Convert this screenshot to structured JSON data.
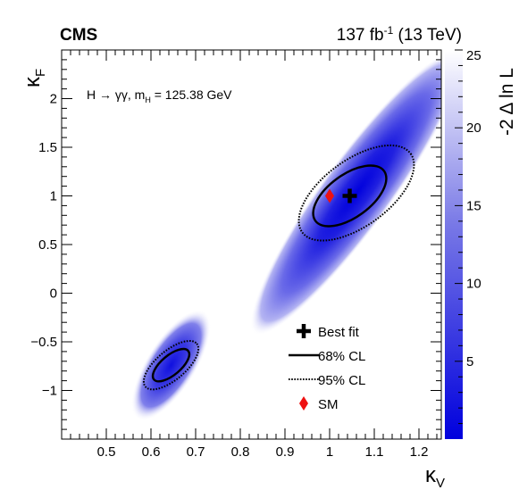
{
  "chart_data": {
    "type": "heatmap",
    "experiment": "CMS",
    "lumi": {
      "pre": "137 fb",
      "sup": "-1",
      "post": " (13 TeV)"
    },
    "process": {
      "main": "H → γγ, m",
      "sub": "H",
      "tail": " = 125.38 GeV"
    },
    "xlabel": {
      "main": "κ",
      "sub": "V"
    },
    "ylabel": {
      "main": "κ",
      "sub": "F"
    },
    "zlabel": "-2 Δ ln L",
    "xlim": [
      0.4,
      1.25
    ],
    "ylim": [
      -1.5,
      2.5
    ],
    "zlim": [
      0,
      25
    ],
    "xticks": [
      {
        "v": 0.5,
        "label": "0.5"
      },
      {
        "v": 0.6,
        "label": "0.6"
      },
      {
        "v": 0.7,
        "label": "0.7"
      },
      {
        "v": 0.8,
        "label": "0.8"
      },
      {
        "v": 0.9,
        "label": "0.9"
      },
      {
        "v": 1.0,
        "label": "1"
      },
      {
        "v": 1.1,
        "label": "1.1"
      },
      {
        "v": 1.2,
        "label": "1.2"
      }
    ],
    "yticks": [
      {
        "v": -1.0,
        "label": "−1"
      },
      {
        "v": -0.5,
        "label": "−0.5"
      },
      {
        "v": 0.0,
        "label": "0"
      },
      {
        "v": 0.5,
        "label": "0.5"
      },
      {
        "v": 1.0,
        "label": "1"
      },
      {
        "v": 1.5,
        "label": "1.5"
      },
      {
        "v": 2.0,
        "label": "2"
      }
    ],
    "zticks": [
      {
        "v": 5,
        "label": "5"
      },
      {
        "v": 10,
        "label": "10"
      },
      {
        "v": 15,
        "label": "15"
      },
      {
        "v": 20,
        "label": "20"
      },
      {
        "v": 25,
        "label": "25"
      }
    ],
    "colors": {
      "low": "#0000dd",
      "high": "#ffffff",
      "sm": "#ee1111"
    },
    "best_fit": {
      "x": 1.045,
      "y": 1.0
    },
    "sm": {
      "x": 1.0,
      "y": 1.0
    },
    "contours": [
      {
        "level": "68% CL",
        "cx": 1.045,
        "cy": 1.0,
        "rx": 0.095,
        "ry": 0.22,
        "angle": 36
      },
      {
        "level": "95% CL",
        "cx": 1.06,
        "cy": 1.03,
        "rx": 0.15,
        "ry": 0.34,
        "angle": 36
      },
      {
        "level": "68% CL",
        "cx": 0.645,
        "cy": -0.74,
        "rx": 0.05,
        "ry": 0.1,
        "angle": 40
      },
      {
        "level": "95% CL",
        "cx": 0.645,
        "cy": -0.74,
        "rx": 0.075,
        "ry": 0.15,
        "angle": 40
      }
    ],
    "legend": [
      {
        "marker": "cross",
        "label": "Best fit"
      },
      {
        "marker": "solid",
        "label": "68% CL"
      },
      {
        "marker": "dotted",
        "label": "95% CL"
      },
      {
        "marker": "diamond",
        "label": "SM"
      }
    ]
  }
}
